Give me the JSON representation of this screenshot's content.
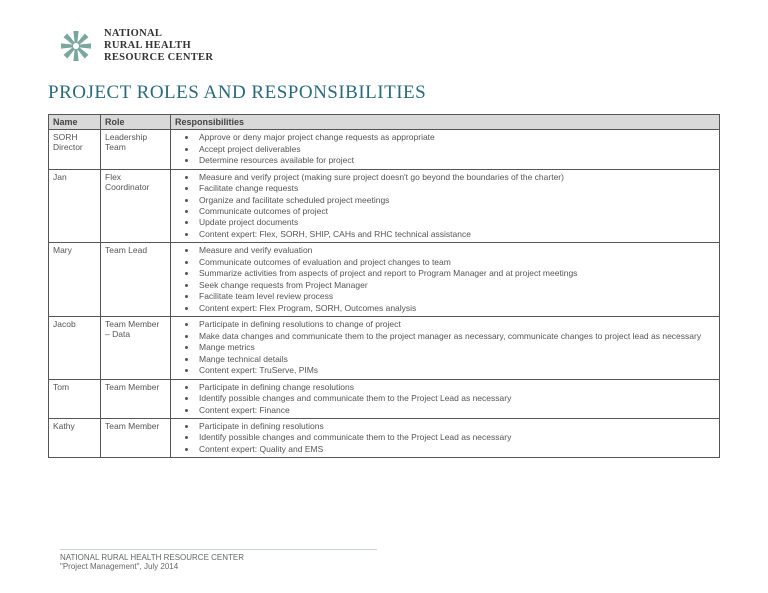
{
  "org": {
    "line1": "NATIONAL",
    "line2": "RURAL HEALTH",
    "line3": "RESOURCE CENTER"
  },
  "title": "PROJECT ROLES AND RESPONSIBILITIES",
  "columns": {
    "name": "Name",
    "role": "Role",
    "resp": "Responsibilities"
  },
  "rows": [
    {
      "name": "SORH Director",
      "role": "Leadership Team",
      "resp": [
        "Approve or deny major project change requests as appropriate",
        "Accept project deliverables",
        "Determine resources available for project"
      ]
    },
    {
      "name": "Jan",
      "role": "Flex Coordinator",
      "resp": [
        "Measure and verify project (making sure project doesn't go beyond the boundaries of the charter)",
        "Facilitate change requests",
        "Organize and facilitate scheduled project meetings",
        "Communicate outcomes of project",
        "Update project documents",
        "Content expert: Flex, SORH, SHIP, CAHs and RHC technical assistance"
      ]
    },
    {
      "name": "Mary",
      "role": "Team Lead",
      "resp": [
        "Measure and verify evaluation",
        "Communicate outcomes of evaluation and project changes to team",
        "Summarize activities from aspects of project and report to Program Manager and at project meetings",
        "Seek change requests from Project Manager",
        "Facilitate team level review process",
        "Content expert: Flex Program, SORH, Outcomes analysis"
      ]
    },
    {
      "name": "Jacob",
      "role": "Team Member – Data",
      "resp": [
        "Participate in defining resolutions to change of project",
        "Make data changes and communicate them to the project manager as necessary, communicate changes to project lead as necessary",
        "Mange metrics",
        "Mange technical details",
        "Content expert: TruServe, PIMs"
      ]
    },
    {
      "name": "Tom",
      "role": "Team Member",
      "resp": [
        "Participate in defining change resolutions",
        "Identify possible changes and communicate them to the Project Lead as necessary",
        "Content expert: Finance"
      ]
    },
    {
      "name": "Kathy",
      "role": "Team Member",
      "resp": [
        "Participate in defining resolutions",
        "Identify possible changes and communicate them to the Project Lead as necessary",
        "Content expert: Quality and EMS"
      ]
    }
  ],
  "footer": {
    "line1": "NATIONAL RURAL HEALTH RESOURCE CENTER",
    "line2": "\"Project Management\", July 2014"
  },
  "logo_colors": {
    "spoke": "#7aa6a0",
    "accent": "#3d6f6a"
  }
}
